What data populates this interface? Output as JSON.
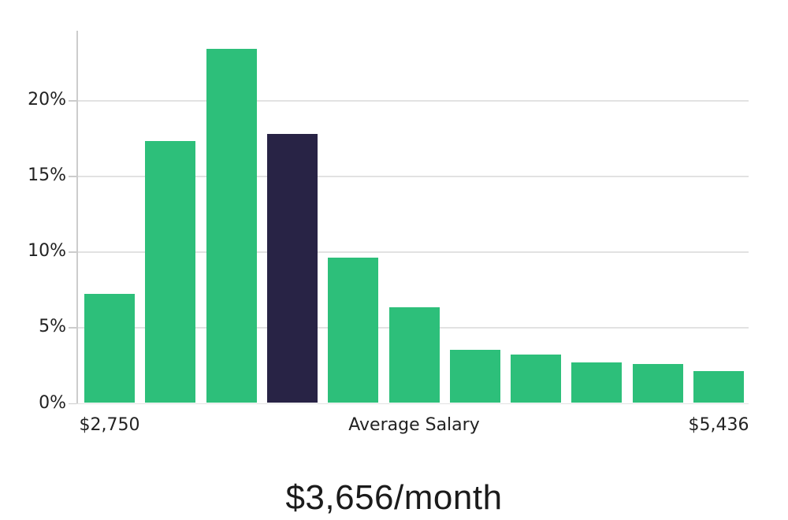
{
  "chart_data": {
    "type": "bar",
    "title": "$3,656/month",
    "values": [
      7.2,
      17.3,
      23.4,
      17.8,
      9.6,
      6.3,
      3.5,
      3.2,
      2.7,
      2.6,
      2.1
    ],
    "highlighted_bar_index": 3,
    "ylim": [
      0,
      24.6
    ],
    "y_ticks": [
      0,
      5,
      10,
      15,
      20
    ],
    "y_tick_labels": [
      "0%",
      "5%",
      "10%",
      "15%",
      "20%"
    ],
    "x_tick_labels": [
      {
        "label": "$2,750",
        "bar_index": 0
      },
      {
        "label": "Average Salary",
        "bar_index": 5
      },
      {
        "label": "$5,436",
        "bar_index": 10
      }
    ],
    "grid": true,
    "legend": false,
    "colors": {
      "bar": "#2dbf7a",
      "highlighted_bar": "#282345",
      "gridline": "#e2e2e2",
      "axis": "#cccccc",
      "tick_label": "#222222",
      "title": "#1b1b1b"
    }
  }
}
